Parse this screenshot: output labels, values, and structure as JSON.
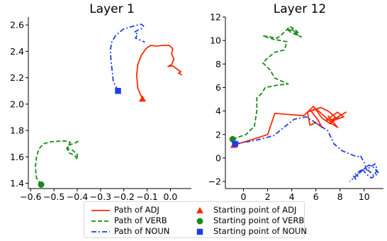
{
  "chart_data": [
    {
      "type": "line",
      "title": "Layer 1",
      "xlim": [
        -0.61,
        0.09
      ],
      "ylim": [
        1.36,
        2.66
      ],
      "xticks": [
        -0.6,
        -0.5,
        -0.4,
        -0.3,
        -0.2,
        -0.1,
        0.0
      ],
      "xtick_labels": [
        "−0.6",
        "−0.5",
        "−0.4",
        "−0.3",
        "−0.2",
        "−0.1",
        "0.0"
      ],
      "yticks": [
        1.4,
        1.6,
        1.8,
        2.0,
        2.2,
        2.4,
        2.6
      ],
      "ytick_labels": [
        "1.4",
        "1.6",
        "1.8",
        "2.0",
        "2.2",
        "2.4",
        "2.6"
      ],
      "series": [
        {
          "key": "ADJ",
          "color": "#ff2a0a",
          "dash": "solid",
          "start": [
            -0.12,
            2.04
          ],
          "start_marker": "triangle",
          "points": [
            [
              -0.12,
              2.04
            ],
            [
              -0.14,
              2.12
            ],
            [
              -0.145,
              2.22
            ],
            [
              -0.14,
              2.3
            ],
            [
              -0.125,
              2.37
            ],
            [
              -0.105,
              2.42
            ],
            [
              -0.085,
              2.445
            ],
            [
              -0.06,
              2.44
            ],
            [
              -0.03,
              2.445
            ],
            [
              -0.005,
              2.445
            ],
            [
              0.01,
              2.42
            ],
            [
              0.005,
              2.38
            ],
            [
              0.015,
              2.34
            ],
            [
              0.005,
              2.3
            ],
            [
              -0.01,
              2.285
            ],
            [
              0.01,
              2.29
            ],
            [
              0.025,
              2.27
            ],
            [
              0.045,
              2.245
            ],
            [
              0.035,
              2.235
            ],
            [
              0.05,
              2.22
            ]
          ]
        },
        {
          "key": "VERB",
          "color": "#1a8a1a",
          "dash": "dashed",
          "start": [
            -0.555,
            1.39
          ],
          "start_marker": "circle",
          "points": [
            [
              -0.555,
              1.39
            ],
            [
              -0.575,
              1.44
            ],
            [
              -0.58,
              1.52
            ],
            [
              -0.575,
              1.6
            ],
            [
              -0.565,
              1.66
            ],
            [
              -0.545,
              1.7
            ],
            [
              -0.51,
              1.715
            ],
            [
              -0.47,
              1.72
            ],
            [
              -0.445,
              1.72
            ],
            [
              -0.43,
              1.71
            ],
            [
              -0.44,
              1.68
            ],
            [
              -0.44,
              1.66
            ],
            [
              -0.42,
              1.65
            ],
            [
              -0.4,
              1.62
            ],
            [
              -0.4,
              1.58
            ],
            [
              -0.41,
              1.61
            ],
            [
              -0.435,
              1.63
            ],
            [
              -0.445,
              1.665
            ],
            [
              -0.435,
              1.69
            ],
            [
              -0.41,
              1.705
            ],
            [
              -0.395,
              1.72
            ],
            [
              -0.405,
              1.715
            ]
          ]
        },
        {
          "key": "NOUN",
          "color": "#1f3fe0",
          "dash": "dashdot",
          "start": [
            -0.225,
            2.1
          ],
          "start_marker": "square",
          "points": [
            [
              -0.225,
              2.1
            ],
            [
              -0.245,
              2.17
            ],
            [
              -0.25,
              2.25
            ],
            [
              -0.255,
              2.33
            ],
            [
              -0.258,
              2.41
            ],
            [
              -0.252,
              2.47
            ],
            [
              -0.235,
              2.52
            ],
            [
              -0.215,
              2.55
            ],
            [
              -0.2,
              2.57
            ],
            [
              -0.18,
              2.58
            ],
            [
              -0.16,
              2.59
            ],
            [
              -0.14,
              2.6
            ],
            [
              -0.125,
              2.605
            ],
            [
              -0.115,
              2.59
            ],
            [
              -0.125,
              2.57
            ],
            [
              -0.14,
              2.56
            ],
            [
              -0.155,
              2.545
            ],
            [
              -0.14,
              2.53
            ],
            [
              -0.15,
              2.5
            ],
            [
              -0.135,
              2.49
            ],
            [
              -0.125,
              2.48
            ],
            [
              -0.11,
              2.47
            ]
          ]
        }
      ]
    },
    {
      "type": "line",
      "title": "Layer 12",
      "xlim": [
        -1.5,
        11.6
      ],
      "ylim": [
        -2.6,
        12.0
      ],
      "xticks": [
        0,
        2,
        4,
        6,
        8,
        10
      ],
      "xtick_labels": [
        "0",
        "2",
        "4",
        "6",
        "8",
        "10"
      ],
      "yticks": [
        -2,
        0,
        2,
        4,
        6,
        8,
        10,
        12
      ],
      "ytick_labels": [
        "−2",
        "0",
        "2",
        "4",
        "6",
        "8",
        "10",
        "12"
      ],
      "series": [
        {
          "key": "ADJ",
          "color": "#ff2a0a",
          "dash": "solid",
          "start": [
            -0.8,
            1.1
          ],
          "start_marker": "triangle",
          "points": [
            [
              -0.8,
              1.1
            ],
            [
              0.5,
              1.5
            ],
            [
              2.0,
              2.0
            ],
            [
              2.6,
              3.8
            ],
            [
              3.8,
              3.7
            ],
            [
              5.0,
              3.6
            ],
            [
              5.8,
              4.4
            ],
            [
              6.5,
              3.4
            ],
            [
              7.2,
              2.9
            ],
            [
              8.0,
              3.6
            ],
            [
              8.5,
              3.9
            ],
            [
              7.5,
              3.3
            ],
            [
              6.8,
              3.2
            ],
            [
              7.8,
              3.9
            ],
            [
              8.3,
              3.5
            ],
            [
              7.2,
              3.1
            ],
            [
              6.0,
              4.2
            ],
            [
              5.3,
              3.9
            ],
            [
              5.5,
              2.8
            ],
            [
              6.0,
              3.0
            ],
            [
              6.5,
              2.6
            ],
            [
              6.2,
              3.2
            ],
            [
              5.6,
              4.0
            ],
            [
              6.4,
              4.3
            ],
            [
              7.0,
              4.0
            ],
            [
              7.6,
              3.5
            ],
            [
              7.2,
              3.0
            ],
            [
              7.8,
              2.6
            ],
            [
              7.0,
              3.6
            ]
          ]
        },
        {
          "key": "VERB",
          "color": "#1a8a1a",
          "dash": "dashed",
          "start": [
            -0.9,
            1.6
          ],
          "start_marker": "circle",
          "points": [
            [
              -0.9,
              1.6
            ],
            [
              0.2,
              2.0
            ],
            [
              0.9,
              2.7
            ],
            [
              1.1,
              4.0
            ],
            [
              1.1,
              5.1
            ],
            [
              1.5,
              5.5
            ],
            [
              1.8,
              6.0
            ],
            [
              2.8,
              6.2
            ],
            [
              3.7,
              6.3
            ],
            [
              2.6,
              6.8
            ],
            [
              2.2,
              7.5
            ],
            [
              1.6,
              8.1
            ],
            [
              2.0,
              8.5
            ],
            [
              2.6,
              9.0
            ],
            [
              3.4,
              9.2
            ],
            [
              3.6,
              9.9
            ],
            [
              2.5,
              10.1
            ],
            [
              1.6,
              10.4
            ],
            [
              2.8,
              10.2
            ],
            [
              3.5,
              10.8
            ],
            [
              3.8,
              11.2
            ],
            [
              4.2,
              11.0
            ],
            [
              4.6,
              10.6
            ],
            [
              3.6,
              11.0
            ],
            [
              3.9,
              10.7
            ],
            [
              4.8,
              10.3
            ],
            [
              4.3,
              10.6
            ],
            [
              4.0,
              11.0
            ]
          ]
        },
        {
          "key": "NOUN",
          "color": "#1f3fe0",
          "dash": "dashdot",
          "start": [
            -0.7,
            1.2
          ],
          "start_marker": "square",
          "points": [
            [
              -0.7,
              1.2
            ],
            [
              1.0,
              1.5
            ],
            [
              2.5,
              1.9
            ],
            [
              4.2,
              3.3
            ],
            [
              5.2,
              3.5
            ],
            [
              6.3,
              2.8
            ],
            [
              7.0,
              2.3
            ],
            [
              7.5,
              1.2
            ],
            [
              8.2,
              0.6
            ],
            [
              9.4,
              0.1
            ],
            [
              9.7,
              0.2
            ],
            [
              10.0,
              -0.4
            ],
            [
              10.2,
              -1.0
            ],
            [
              10.6,
              -0.7
            ],
            [
              10.9,
              -0.5
            ],
            [
              11.1,
              -1.0
            ],
            [
              10.8,
              -1.5
            ],
            [
              10.4,
              -1.1
            ],
            [
              10.0,
              -0.9
            ],
            [
              9.6,
              -1.3
            ],
            [
              9.3,
              -1.8
            ],
            [
              9.1,
              -1.5
            ],
            [
              9.5,
              -1.2
            ],
            [
              10.0,
              -0.9
            ],
            [
              10.4,
              -0.6
            ],
            [
              10.8,
              -0.8
            ],
            [
              11.2,
              -1.3
            ],
            [
              10.6,
              -1.7
            ],
            [
              10.2,
              -1.4
            ],
            [
              9.9,
              -1.0
            ],
            [
              8.8,
              -2.0
            ]
          ]
        }
      ]
    }
  ],
  "legend": {
    "placement": "bottom-center",
    "items": [
      {
        "label": "Path of ADJ",
        "kind": "line",
        "color": "#ff2a0a",
        "dash": "solid"
      },
      {
        "label": "Starting point of ADJ",
        "kind": "marker",
        "marker": "triangle",
        "color": "#ff2a0a"
      },
      {
        "label": "Path of VERB",
        "kind": "line",
        "color": "#1a8a1a",
        "dash": "dashed"
      },
      {
        "label": "Starting point of VERB",
        "kind": "marker",
        "marker": "circle",
        "color": "#1a8a1a"
      },
      {
        "label": "Path of NOUN",
        "kind": "line",
        "color": "#1f3fe0",
        "dash": "dashdot"
      },
      {
        "label": "Starting point of NOUN",
        "kind": "marker",
        "marker": "square",
        "color": "#1f3fe0"
      }
    ]
  }
}
